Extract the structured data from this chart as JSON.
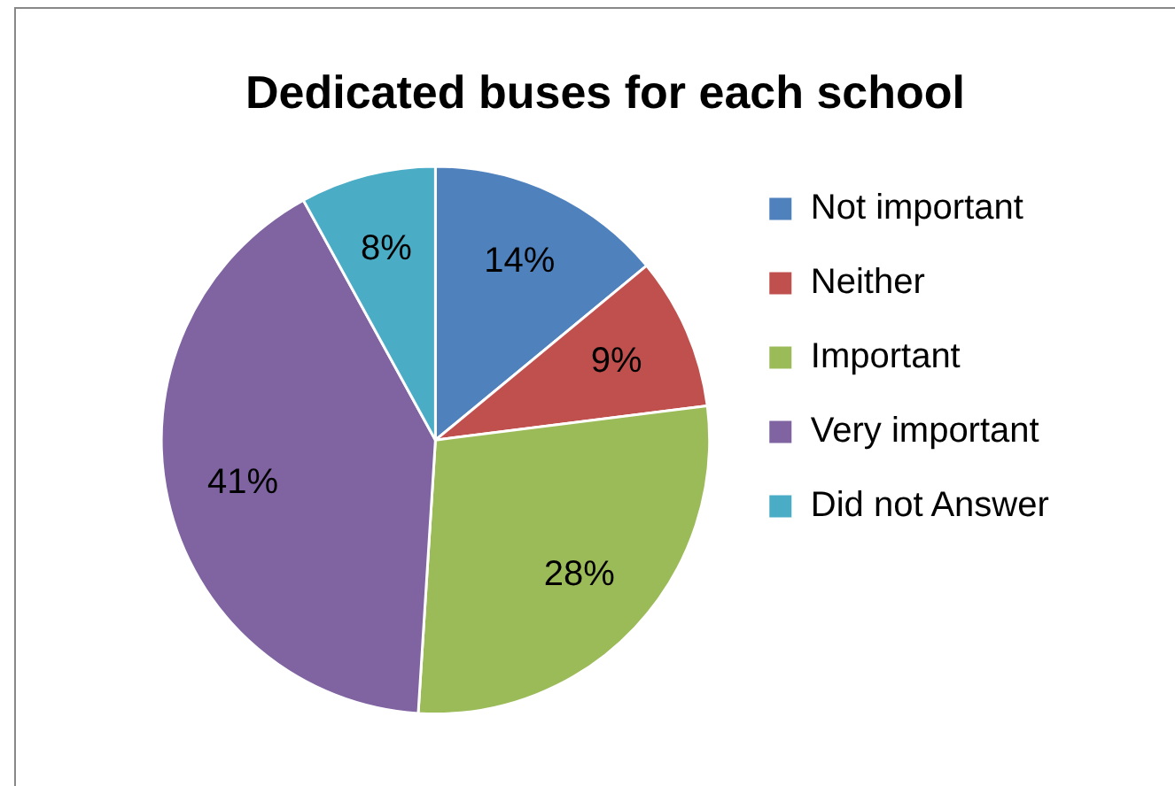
{
  "chart_data": {
    "type": "pie",
    "title": "Dedicated buses for each school",
    "categories": [
      "Not important",
      "Neither",
      "Important",
      "Very important",
      "Did not Answer"
    ],
    "values": [
      14,
      9,
      28,
      41,
      8
    ],
    "colors": [
      "#4f81bd",
      "#c0504d",
      "#9bbb59",
      "#8064a2",
      "#4bacc6"
    ],
    "value_labels": [
      "14%",
      "9%",
      "28%",
      "41%",
      "8%"
    ],
    "legend": "right"
  }
}
